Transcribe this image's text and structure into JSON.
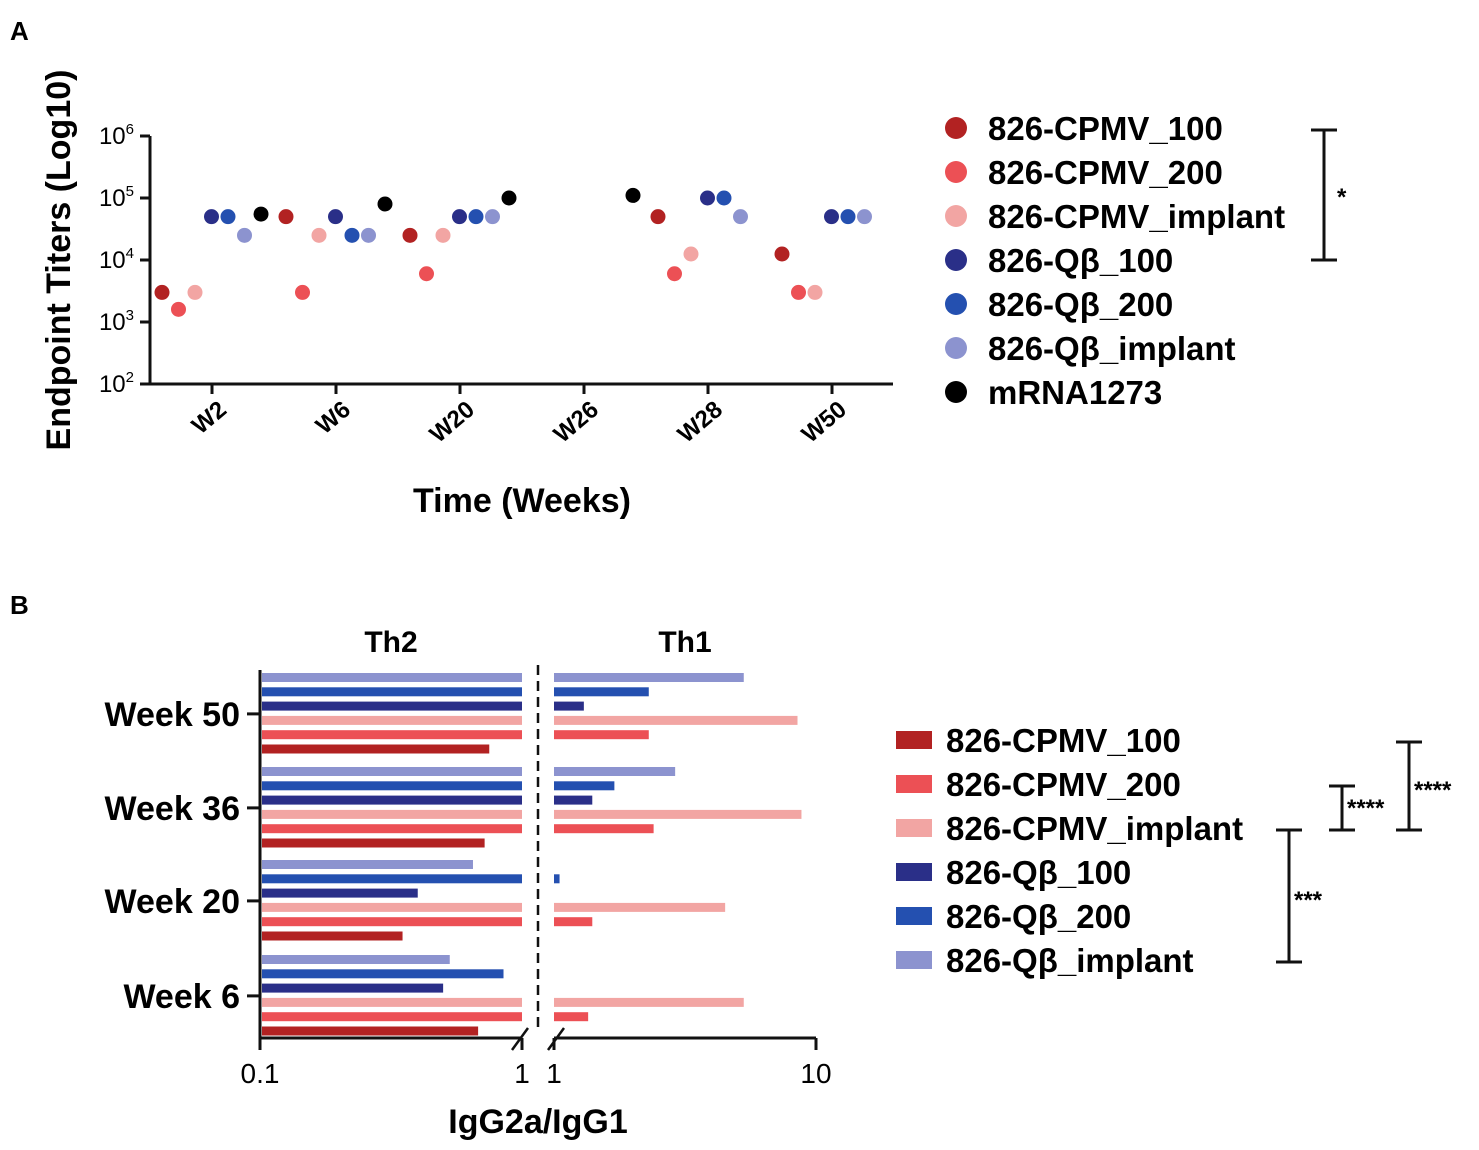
{
  "colors": {
    "826-CPMV_100": "#b22222",
    "826-CPMV_200": "#ec5055",
    "826-CPMV_implant": "#f2a5a3",
    "826-Qβ_100": "#2a2f88",
    "826-Qβ_200": "#2450b0",
    "826-Qβ_implant": "#8c93cf",
    "mRNA1273": "#000000"
  },
  "panel_a": {
    "panel_label": "A",
    "legend": {
      "items": [
        "826-CPMV_100",
        "826-CPMV_200",
        "826-CPMV_implant",
        "826-Qβ_100",
        "826-Qβ_200",
        "826-Qβ_implant",
        "mRNA1273"
      ],
      "significance": "*"
    }
  },
  "panel_b": {
    "panel_label": "B",
    "legend": {
      "items": [
        "826-CPMV_100",
        "826-CPMV_200",
        "826-CPMV_implant",
        "826-Qβ_100",
        "826-Qβ_200",
        "826-Qβ_implant"
      ],
      "significance": [
        "****",
        "****",
        "***"
      ]
    }
  },
  "chart_data": [
    {
      "type": "scatter",
      "title": "",
      "xlabel": "Time (Weeks)",
      "ylabel": "Endpoint Titers (Log10)",
      "yscale": "log10",
      "ylim_exponent": [
        2,
        6
      ],
      "y_ticks": [
        {
          "base": "10",
          "exp": "2"
        },
        {
          "base": "10",
          "exp": "3"
        },
        {
          "base": "10",
          "exp": "4"
        },
        {
          "base": "10",
          "exp": "5"
        },
        {
          "base": "10",
          "exp": "6"
        }
      ],
      "categories": [
        "W2",
        "W6",
        "W20",
        "W26",
        "W28",
        "W50"
      ],
      "series_order": [
        "826-CPMV_100",
        "826-CPMV_200",
        "826-CPMV_implant",
        "826-Qβ_100",
        "826-Qβ_200",
        "826-Qβ_implant",
        "mRNA1273"
      ],
      "points": [
        {
          "category": "W2",
          "series": "826-CPMV_100",
          "value": 3000
        },
        {
          "category": "W2",
          "series": "826-CPMV_200",
          "value": 1600
        },
        {
          "category": "W2",
          "series": "826-CPMV_implant",
          "value": 3000
        },
        {
          "category": "W2",
          "series": "826-Qβ_100",
          "value": 50000
        },
        {
          "category": "W2",
          "series": "826-Qβ_200",
          "value": 50000
        },
        {
          "category": "W2",
          "series": "826-Qβ_implant",
          "value": 25000
        },
        {
          "category": "W2",
          "series": "mRNA1273",
          "value": 55000
        },
        {
          "category": "W6",
          "series": "826-CPMV_100",
          "value": 50000
        },
        {
          "category": "W6",
          "series": "826-CPMV_200",
          "value": 3000
        },
        {
          "category": "W6",
          "series": "826-CPMV_implant",
          "value": 25000
        },
        {
          "category": "W6",
          "series": "826-Qβ_100",
          "value": 50000
        },
        {
          "category": "W6",
          "series": "826-Qβ_200",
          "value": 25000
        },
        {
          "category": "W6",
          "series": "826-Qβ_implant",
          "value": 25000
        },
        {
          "category": "W6",
          "series": "mRNA1273",
          "value": 80000
        },
        {
          "category": "W20",
          "series": "826-CPMV_100",
          "value": 25000
        },
        {
          "category": "W20",
          "series": "826-CPMV_200",
          "value": 6000
        },
        {
          "category": "W20",
          "series": "826-CPMV_implant",
          "value": 25000
        },
        {
          "category": "W20",
          "series": "826-Qβ_100",
          "value": 50000
        },
        {
          "category": "W20",
          "series": "826-Qβ_200",
          "value": 50000
        },
        {
          "category": "W20",
          "series": "826-Qβ_implant",
          "value": 50000
        },
        {
          "category": "W20",
          "series": "mRNA1273",
          "value": 100000
        },
        {
          "category": "W26",
          "series": "mRNA1273",
          "value": 110000
        },
        {
          "category": "W28",
          "series": "826-CPMV_100",
          "value": 50000
        },
        {
          "category": "W28",
          "series": "826-CPMV_200",
          "value": 6000
        },
        {
          "category": "W28",
          "series": "826-CPMV_implant",
          "value": 12500
        },
        {
          "category": "W28",
          "series": "826-Qβ_100",
          "value": 100000
        },
        {
          "category": "W28",
          "series": "826-Qβ_200",
          "value": 100000
        },
        {
          "category": "W28",
          "series": "826-Qβ_implant",
          "value": 50000
        },
        {
          "category": "W50",
          "series": "826-CPMV_100",
          "value": 12500
        },
        {
          "category": "W50",
          "series": "826-CPMV_200",
          "value": 3000
        },
        {
          "category": "W50",
          "series": "826-CPMV_implant",
          "value": 3000
        },
        {
          "category": "W50",
          "series": "826-Qβ_100",
          "value": 50000
        },
        {
          "category": "W50",
          "series": "826-Qβ_200",
          "value": 50000
        },
        {
          "category": "W50",
          "series": "826-Qβ_implant",
          "value": 50000
        }
      ]
    },
    {
      "type": "bar",
      "orientation": "horizontal",
      "xlabel": "IgG2a/IgG1",
      "xscale": "log10 (broken)",
      "segments": [
        {
          "label": "Th2",
          "range": [
            0.1,
            1
          ],
          "ticks": [
            "0.1",
            "1"
          ]
        },
        {
          "label": "Th1",
          "range": [
            1,
            10
          ],
          "ticks": [
            "1",
            "10"
          ]
        }
      ],
      "categories": [
        "Week 50",
        "Week 36",
        "Week 20",
        "Week 6"
      ],
      "series_order_top_to_bottom": [
        "826-Qβ_implant",
        "826-Qβ_200",
        "826-Qβ_100",
        "826-CPMV_implant",
        "826-CPMV_200",
        "826-CPMV_100"
      ],
      "series": [
        {
          "name": "826-CPMV_100",
          "values": [
            0.75,
            0.72,
            0.35,
            0.68
          ]
        },
        {
          "name": "826-CPMV_200",
          "values": [
            2.3,
            2.4,
            1.4,
            1.35
          ]
        },
        {
          "name": "826-CPMV_implant",
          "values": [
            8.5,
            8.8,
            4.5,
            5.3
          ]
        },
        {
          "name": "826-Qβ_100",
          "values": [
            1.3,
            1.4,
            0.4,
            0.5
          ]
        },
        {
          "name": "826-Qβ_200",
          "values": [
            2.3,
            1.7,
            1.05,
            0.85
          ]
        },
        {
          "name": "826-Qβ_implant",
          "values": [
            5.3,
            2.9,
            0.65,
            0.53
          ]
        }
      ]
    }
  ]
}
